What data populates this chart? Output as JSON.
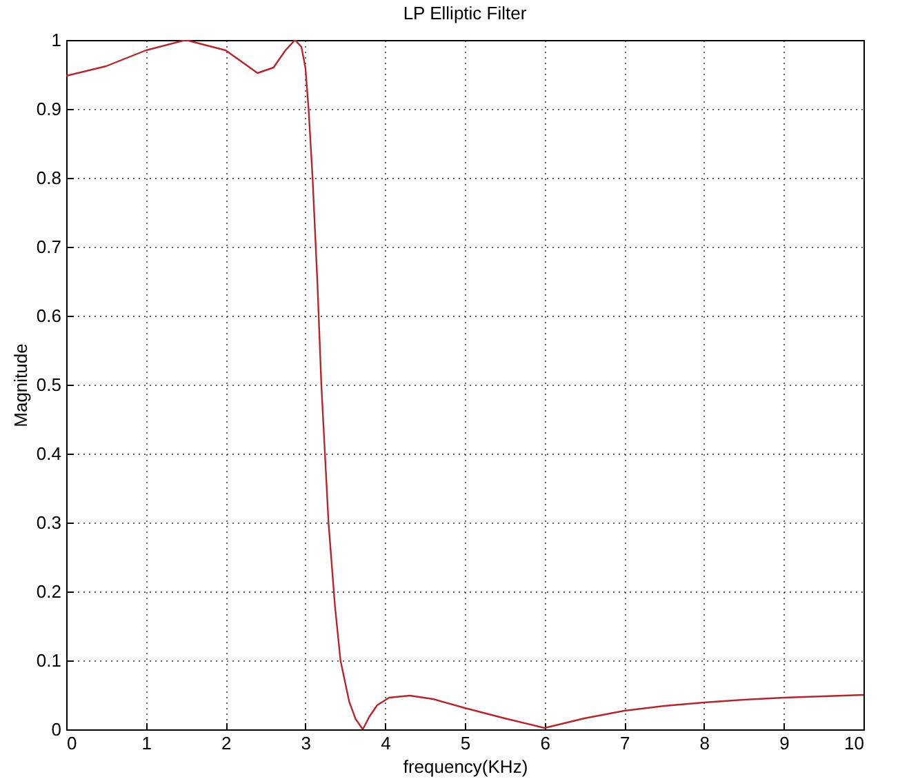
{
  "chart_data": {
    "type": "line",
    "title": "LP Elliptic Filter",
    "xlabel": "frequency(KHz)",
    "ylabel": "Magnitude",
    "x": [
      0,
      0.5,
      1,
      1.5,
      2,
      2.4,
      2.6,
      2.75,
      2.87,
      2.95,
      3.0,
      3.04,
      3.09,
      3.15,
      3.2,
      3.29,
      3.37,
      3.44,
      3.55,
      3.63,
      3.72,
      3.8,
      3.9,
      4.05,
      4.31,
      4.6,
      5,
      5.5,
      6,
      6.5,
      7,
      7.5,
      8,
      8.5,
      9,
      9.5,
      10
    ],
    "series": [
      {
        "color": "#b0282e",
        "values": [
          0.948,
          0.962,
          0.985,
          1.0,
          0.985,
          0.952,
          0.96,
          0.985,
          1.0,
          0.99,
          0.96,
          0.9,
          0.8,
          0.65,
          0.5,
          0.3,
          0.18,
          0.1,
          0.04,
          0.015,
          0.0,
          0.018,
          0.035,
          0.046,
          0.049,
          0.044,
          0.031,
          0.016,
          0.002,
          0.016,
          0.027,
          0.034,
          0.039,
          0.043,
          0.046,
          0.048,
          0.05
        ]
      }
    ],
    "xlim": [
      0,
      10
    ],
    "ylim": [
      0,
      1
    ],
    "xticks": [
      0,
      1,
      2,
      3,
      4,
      5,
      6,
      7,
      8,
      9,
      10
    ],
    "yticks": [
      0,
      0.1,
      0.2,
      0.3,
      0.4,
      0.5,
      0.6,
      0.7,
      0.8,
      0.9,
      1
    ],
    "grid": true,
    "legend": false
  }
}
